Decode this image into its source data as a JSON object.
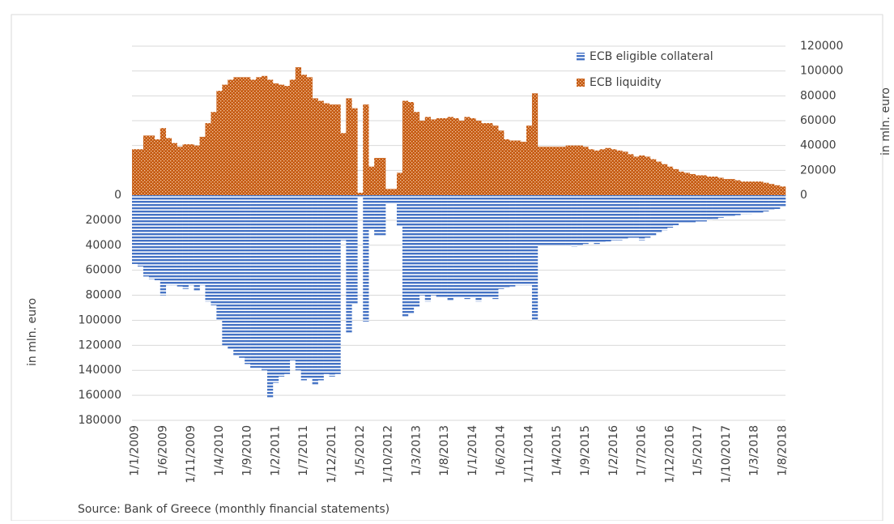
{
  "chart_data": {
    "type": "mirrored-bar",
    "categories": [
      "1/1/2009",
      null,
      null,
      null,
      null,
      "1/6/2009",
      null,
      null,
      null,
      null,
      "1/11/2009",
      null,
      null,
      null,
      null,
      "1/4/2010",
      null,
      null,
      null,
      null,
      "1/9/2010",
      null,
      null,
      null,
      null,
      "1/2/2011",
      null,
      null,
      null,
      null,
      "1/7/2011",
      null,
      null,
      null,
      null,
      "1/12/2011",
      null,
      null,
      null,
      null,
      "1/5/2012",
      null,
      null,
      null,
      null,
      "1/10/2012",
      null,
      null,
      null,
      null,
      "1/3/2013",
      null,
      null,
      null,
      null,
      "1/8/2013",
      null,
      null,
      null,
      null,
      "1/1/2014",
      null,
      null,
      null,
      null,
      "1/6/2014",
      null,
      null,
      null,
      null,
      "1/11/2014",
      null,
      null,
      null,
      null,
      "1/4/2015",
      null,
      null,
      null,
      null,
      "1/9/2015",
      null,
      null,
      null,
      null,
      "1/2/2016",
      null,
      null,
      null,
      null,
      "1/7/2016",
      null,
      null,
      null,
      null,
      "1/12/2016",
      null,
      null,
      null,
      null,
      "1/5/2017",
      null,
      null,
      null,
      null,
      "1/10/2017",
      null,
      null,
      null,
      null,
      "1/3/2018",
      null,
      null,
      null,
      null,
      "1/8/2018"
    ],
    "series": [
      {
        "name": "ECB eligible collateral",
        "color": "#4472c4",
        "axis": "y",
        "values": [
          55000,
          57000,
          65000,
          67000,
          68000,
          80000,
          72000,
          72000,
          73000,
          75000,
          72000,
          77000,
          72000,
          85000,
          88000,
          100000,
          120000,
          123000,
          128000,
          130000,
          135000,
          138000,
          138000,
          140000,
          162000,
          150000,
          145000,
          143000,
          132000,
          140000,
          148000,
          146000,
          152000,
          148000,
          143000,
          145000,
          143000,
          36000,
          110000,
          87000,
          2000,
          101000,
          27000,
          32000,
          32000,
          7000,
          7000,
          25000,
          97000,
          95000,
          90000,
          80000,
          85000,
          80000,
          82000,
          82000,
          84000,
          82000,
          82000,
          83000,
          82000,
          85000,
          82000,
          82000,
          83000,
          75000,
          74000,
          73000,
          72000,
          72000,
          72000,
          100000,
          40000,
          40000,
          40000,
          40000,
          40000,
          40000,
          41000,
          40000,
          39000,
          38000,
          39000,
          38000,
          37000,
          36000,
          36000,
          35000,
          34000,
          34000,
          36000,
          34000,
          32000,
          30000,
          28000,
          26000,
          24000,
          22000,
          22000,
          22000,
          21000,
          21000,
          20000,
          19000,
          18000,
          17000,
          17000,
          16000,
          15000,
          15000,
          14000,
          14000,
          13000,
          12000,
          11000,
          9000
        ]
      },
      {
        "name": "ECB liquidity",
        "color": "#c55a11",
        "axis": "y2",
        "values": [
          37000,
          37000,
          48000,
          48000,
          45000,
          54000,
          46000,
          42000,
          39000,
          41000,
          41000,
          40000,
          47000,
          58000,
          67000,
          84000,
          89000,
          93000,
          95000,
          95000,
          95000,
          93000,
          95000,
          96000,
          93000,
          90000,
          89000,
          88000,
          93000,
          103000,
          97000,
          95000,
          78000,
          76000,
          74000,
          73000,
          73000,
          50000,
          78000,
          70000,
          2000,
          73000,
          23000,
          30000,
          30000,
          5000,
          5000,
          18000,
          76000,
          75000,
          67000,
          60000,
          63000,
          61000,
          62000,
          62000,
          63000,
          62000,
          60000,
          63000,
          62000,
          60000,
          58000,
          58000,
          56000,
          52000,
          45000,
          44000,
          44000,
          43000,
          56000,
          82000,
          39000,
          39000,
          39000,
          39000,
          39000,
          40000,
          40000,
          40000,
          39000,
          37000,
          36000,
          37000,
          38000,
          37000,
          36000,
          35000,
          33000,
          31000,
          32000,
          31000,
          29000,
          27000,
          25000,
          23000,
          21000,
          19000,
          18000,
          17000,
          16000,
          16000,
          15000,
          15000,
          14000,
          13000,
          13000,
          12000,
          11000,
          11000,
          11000,
          11000,
          10000,
          9000,
          8000,
          7000
        ]
      }
    ],
    "ylim": [
      0,
      180000
    ],
    "yticks": [
      0,
      20000,
      40000,
      60000,
      80000,
      100000,
      120000,
      140000,
      160000,
      180000
    ],
    "y2lim": [
      0,
      120000
    ],
    "y2ticks": [
      0,
      20000,
      40000,
      60000,
      80000,
      100000,
      120000
    ],
    "ylabel": "in mln. euro",
    "y2label": "in mln. euro",
    "source": "Source: Bank of Greece (monthly financial statements)",
    "grid": true
  }
}
